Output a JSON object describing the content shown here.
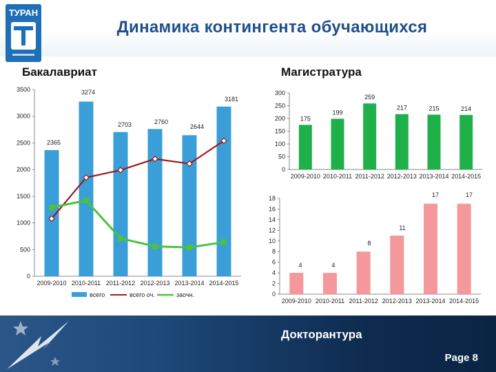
{
  "slide": {
    "title": "Динамика контингента обучающихся",
    "page_label": "Page 8",
    "logo_text": "ТУРАН"
  },
  "colors": {
    "title": "#1f4f8a",
    "bachelor_bar": "#3a9fd8",
    "master_bar": "#1fb04a",
    "doctor_bar": "#f4989c",
    "line_ochnoe": "#9b1c1c",
    "line_zaochnoe": "#4cc23c",
    "footer": "#0e2a4e"
  },
  "chart_data": [
    {
      "type": "bar",
      "title": "Бакалавриат",
      "categories": [
        "2009-2010",
        "2010-2011",
        "2011-2012",
        "2012-2013",
        "2013-2014",
        "2014-2015"
      ],
      "series": [
        {
          "name": "всего",
          "kind": "bar",
          "values": [
            2365,
            3274,
            2703,
            2760,
            2644,
            3181
          ],
          "labels": [
            "2365",
            "3274",
            "2703",
            "2760",
            "2644",
            "3181"
          ]
        },
        {
          "name": "всего оч.",
          "kind": "line",
          "values": [
            1080,
            1850,
            1990,
            2200,
            2110,
            2540
          ]
        },
        {
          "name": "заочн.",
          "kind": "line",
          "values": [
            1290,
            1420,
            710,
            560,
            540,
            640
          ]
        }
      ],
      "ylim": [
        0,
        3500
      ],
      "yticks": [
        "0",
        "500",
        "1000",
        "1500",
        "2000",
        "2500",
        "3000",
        "3500"
      ],
      "legend": "bottom"
    },
    {
      "type": "bar",
      "title": "Магистратура",
      "categories": [
        "2009-2010",
        "2010-2011",
        "2011-2012",
        "2012-2013",
        "2013-2014",
        "2014-2015"
      ],
      "values": [
        175,
        199,
        259,
        217,
        215,
        214
      ],
      "labels": [
        "175",
        "199",
        "259",
        "217",
        "215",
        "214"
      ],
      "ylim": [
        0,
        300
      ],
      "yticks": [
        "0",
        "50",
        "100",
        "150",
        "200",
        "250",
        "300"
      ]
    },
    {
      "type": "bar",
      "title": "Докторантура",
      "categories": [
        "2009-2010",
        "2010-2011",
        "2011-2012",
        "2012-2013",
        "2013-2014",
        "2014-2015"
      ],
      "values": [
        4,
        4,
        8,
        11,
        17,
        17
      ],
      "labels": [
        "4",
        "4",
        "8",
        "11",
        "17",
        "17"
      ],
      "ylim": [
        0,
        18
      ],
      "yticks": [
        "0",
        "2",
        "4",
        "6",
        "8",
        "10",
        "12",
        "14",
        "16",
        "18"
      ]
    }
  ]
}
